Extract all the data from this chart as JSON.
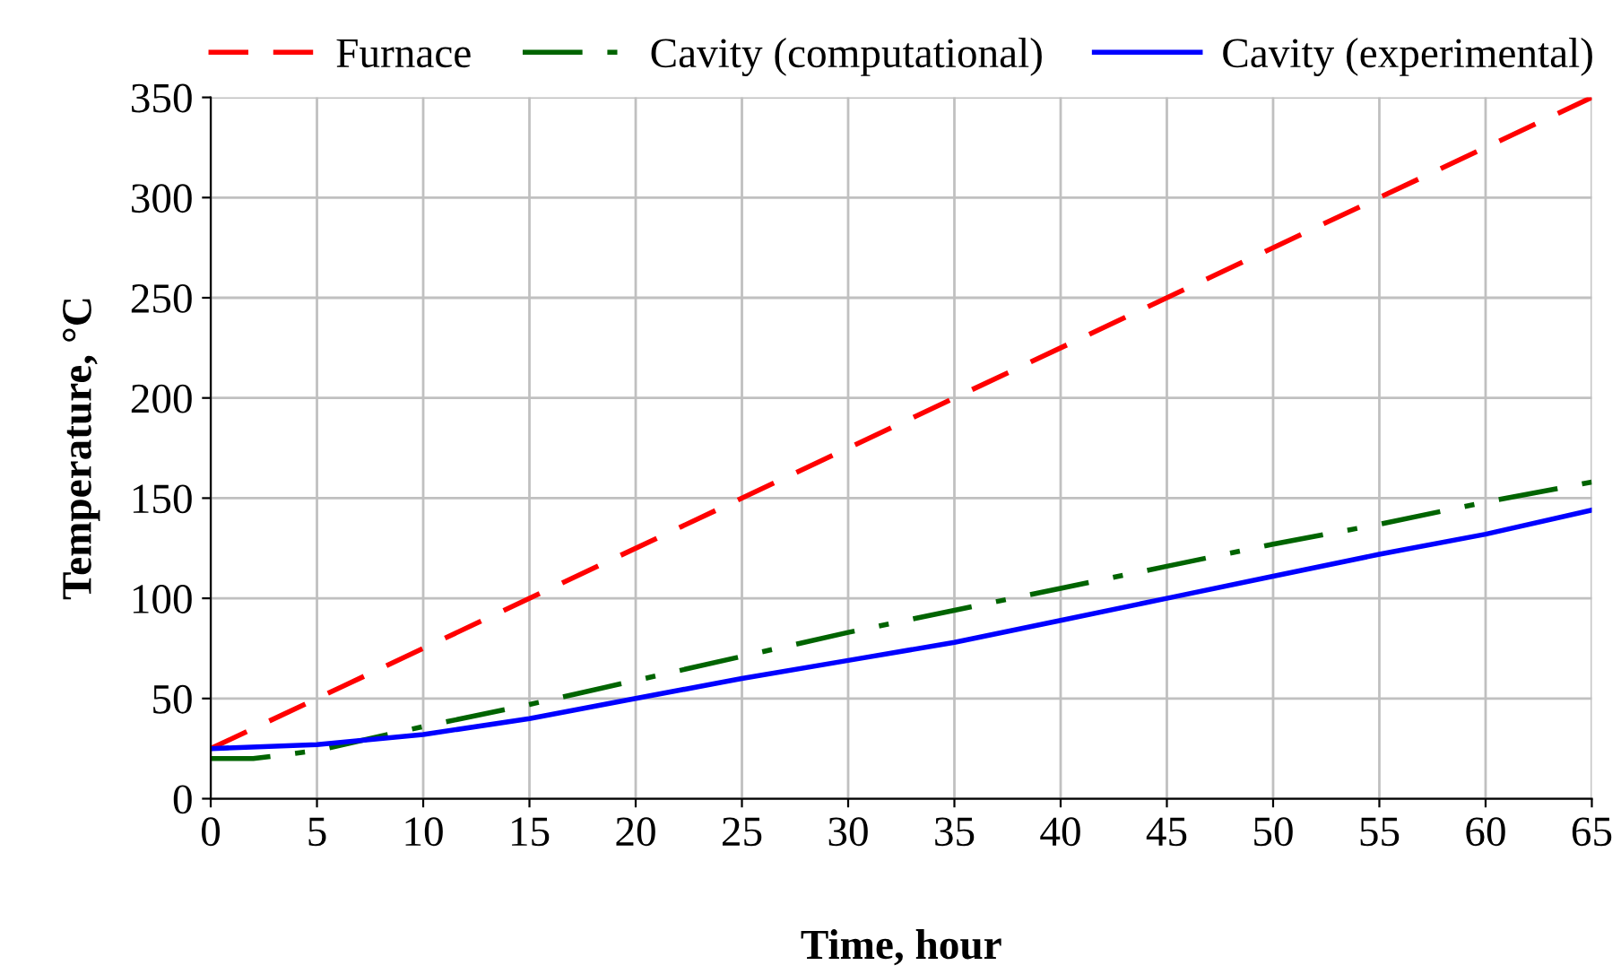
{
  "chart_data": {
    "type": "line",
    "xlabel": "Time, hour",
    "ylabel": "Temperature, °C",
    "xlim": [
      0,
      65
    ],
    "xticks": [
      0,
      5,
      10,
      15,
      20,
      25,
      30,
      35,
      40,
      45,
      50,
      55,
      60,
      65
    ],
    "ylim": [
      0,
      350
    ],
    "yticks": [
      0,
      50,
      100,
      150,
      200,
      250,
      300,
      350
    ],
    "grid": true,
    "legend": "top",
    "marker": "none",
    "series": [
      {
        "name": "Furnace",
        "color": "#ff0000",
        "line_style": "dashed",
        "x": [
          0,
          65
        ],
        "values": [
          25,
          350
        ]
      },
      {
        "name": "Cavity (computational)",
        "color": "#006400",
        "line_style": "dashdot",
        "x": [
          0,
          2,
          5,
          10,
          15,
          20,
          25,
          30,
          35,
          40,
          45,
          50,
          55,
          60,
          65
        ],
        "values": [
          20,
          20,
          24,
          36,
          47,
          59,
          71,
          83,
          94,
          105,
          116,
          127,
          137,
          148,
          158
        ]
      },
      {
        "name": "Cavity (experimental)",
        "color": "#0000ff",
        "line_style": "solid",
        "x": [
          0,
          5,
          10,
          15,
          20,
          25,
          30,
          35,
          40,
          45,
          50,
          55,
          60,
          65
        ],
        "values": [
          25,
          27,
          32,
          40,
          50,
          60,
          69,
          78,
          89,
          100,
          111,
          122,
          132,
          144
        ]
      }
    ]
  }
}
